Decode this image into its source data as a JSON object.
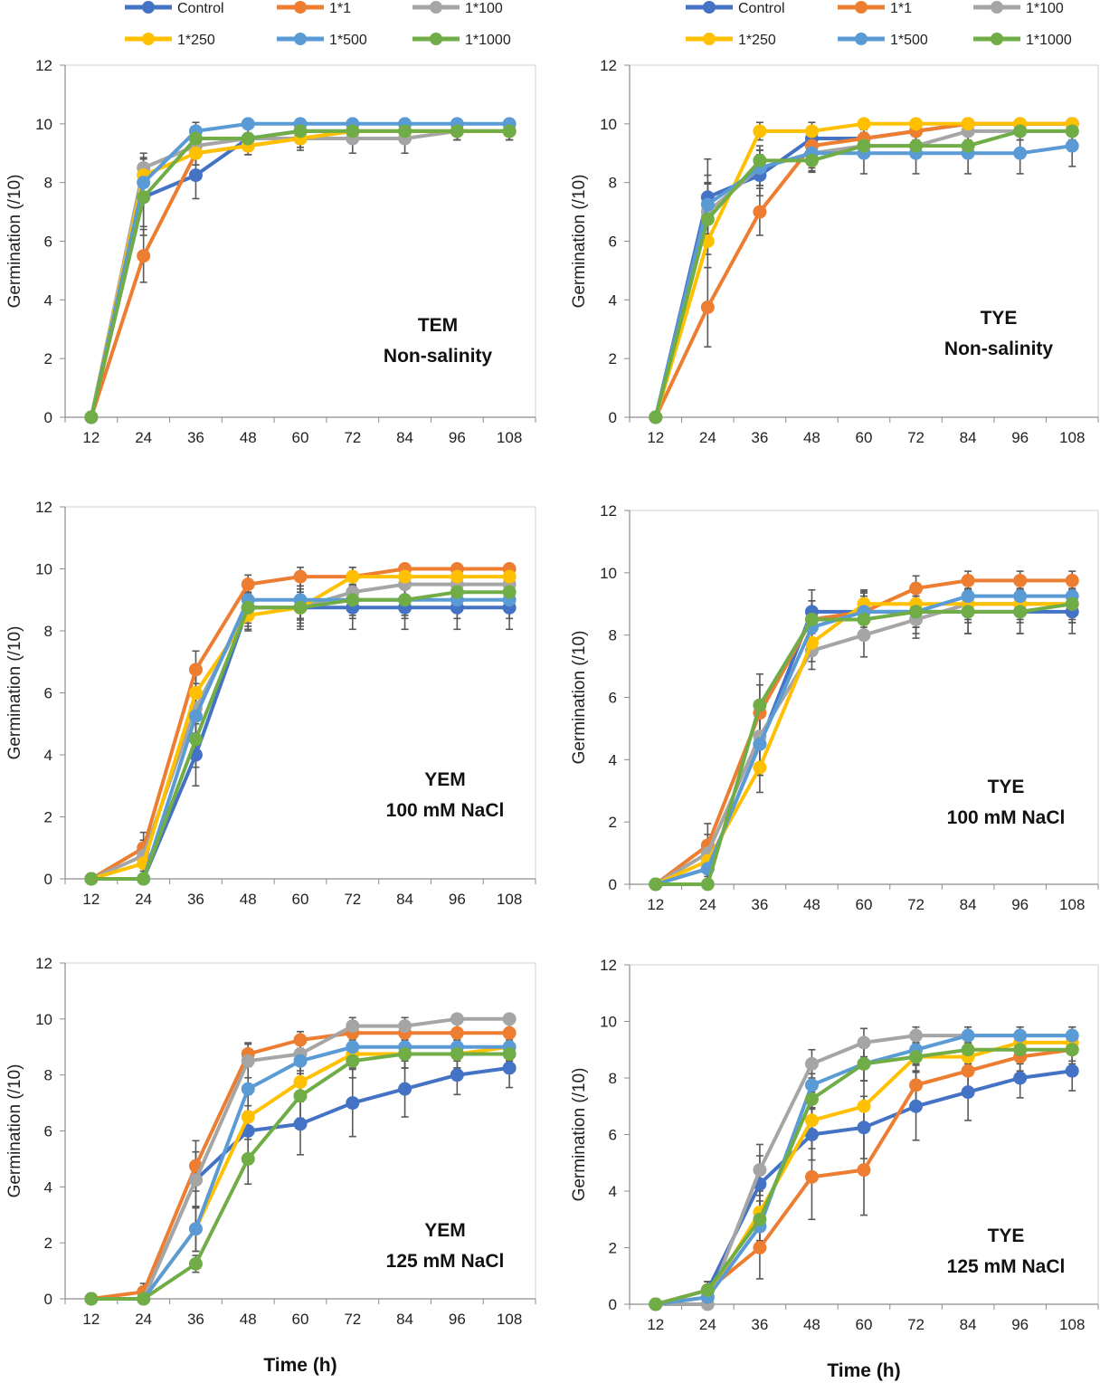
{
  "legend": {
    "entries": [
      {
        "name": "Control",
        "color": "#4472C4"
      },
      {
        "name": "1*1",
        "color": "#ED7D31"
      },
      {
        "name": "1*100",
        "color": "#A5A5A5"
      },
      {
        "name": "1*250",
        "color": "#FFC000"
      },
      {
        "name": "1*500",
        "color": "#5B9BD5"
      },
      {
        "name": "1*1000",
        "color": "#70AD47"
      }
    ]
  },
  "chart_data": [
    {
      "type": "line",
      "annotation": [
        "TEM",
        "Non-salinity"
      ],
      "ylabel": "Germination (/10)",
      "xlabel": "",
      "ylim": [
        0,
        12
      ],
      "yticks": [
        0,
        2,
        4,
        6,
        8,
        10,
        12
      ],
      "x": [
        12,
        24,
        36,
        48,
        60,
        72,
        84,
        96,
        108
      ],
      "series": [
        {
          "name": "Control",
          "values": [
            0,
            7.5,
            8.25,
            9.5,
            9.75,
            9.75,
            9.75,
            9.75,
            9.75
          ],
          "err": [
            0,
            1.3,
            0.8,
            0.4,
            0.3,
            0.3,
            0.3,
            0.3,
            0.3
          ]
        },
        {
          "name": "1*1",
          "values": [
            0,
            5.5,
            9.0,
            9.25,
            9.5,
            9.75,
            9.75,
            9.75,
            9.75
          ],
          "err": [
            0,
            0.9,
            0.4,
            0.3,
            0.3,
            0.3,
            0.3,
            0.3,
            0.3
          ]
        },
        {
          "name": "1*100",
          "values": [
            0,
            8.5,
            9.25,
            9.5,
            9.5,
            9.5,
            9.5,
            9.75,
            9.75
          ],
          "err": [
            0,
            0.5,
            0.4,
            0.4,
            0.4,
            0.5,
            0.5,
            0.3,
            0.3
          ]
        },
        {
          "name": "1*250",
          "values": [
            0,
            8.25,
            9.0,
            9.25,
            9.5,
            9.75,
            9.75,
            9.75,
            9.75
          ],
          "err": [
            0,
            0.6,
            0.4,
            0.3,
            0.3,
            0.3,
            0.3,
            0.3,
            0.3
          ]
        },
        {
          "name": "1*500",
          "values": [
            0,
            8.0,
            9.75,
            10,
            10,
            10,
            10,
            10,
            10
          ],
          "err": [
            0,
            0.6,
            0.3,
            0,
            0,
            0,
            0,
            0,
            0
          ]
        },
        {
          "name": "1*1000",
          "values": [
            0,
            7.5,
            9.5,
            9.5,
            9.75,
            9.75,
            9.75,
            9.75,
            9.75
          ],
          "err": [
            0,
            1.0,
            0.4,
            0.4,
            0.3,
            0.3,
            0.3,
            0.3,
            0.3
          ]
        }
      ]
    },
    {
      "type": "line",
      "annotation": [
        "TYE",
        "Non-salinity"
      ],
      "ylabel": "Germination (/10)",
      "xlabel": "",
      "ylim": [
        0,
        12
      ],
      "yticks": [
        0,
        2,
        4,
        6,
        8,
        10,
        12
      ],
      "x": [
        12,
        24,
        36,
        48,
        60,
        72,
        84,
        96,
        108
      ],
      "series": [
        {
          "name": "Control",
          "values": [
            0,
            7.5,
            8.25,
            9.5,
            9.5,
            9.75,
            10,
            10,
            10
          ],
          "err": [
            0,
            1.3,
            0.7,
            0.4,
            0.3,
            0.3,
            0,
            0,
            0
          ]
        },
        {
          "name": "1*1",
          "values": [
            0,
            3.75,
            7.0,
            9.25,
            9.5,
            9.75,
            10,
            10,
            10
          ],
          "err": [
            0,
            1.35,
            0.8,
            0.4,
            0.4,
            0.3,
            0,
            0,
            0
          ]
        },
        {
          "name": "1*100",
          "values": [
            0,
            7.0,
            8.5,
            9.0,
            9.25,
            9.25,
            9.75,
            9.75,
            9.75
          ],
          "err": [
            0,
            1.0,
            0.6,
            0.5,
            0.4,
            0.4,
            0.3,
            0.3,
            0.3
          ]
        },
        {
          "name": "1*250",
          "values": [
            0,
            6.0,
            9.75,
            9.75,
            10,
            10,
            10,
            10,
            10
          ],
          "err": [
            0,
            0.9,
            0.3,
            0.3,
            0,
            0,
            0,
            0,
            0
          ]
        },
        {
          "name": "1*500",
          "values": [
            0,
            7.25,
            8.5,
            9.0,
            9.0,
            9.0,
            9.0,
            9.0,
            9.25
          ],
          "err": [
            0,
            1.0,
            0.6,
            0.6,
            0.7,
            0.7,
            0.7,
            0.7,
            0.7
          ]
        },
        {
          "name": "1*1000",
          "values": [
            0,
            6.75,
            8.75,
            8.75,
            9.25,
            9.25,
            9.25,
            9.75,
            9.75
          ],
          "err": [
            0,
            1.2,
            0.5,
            0.4,
            0.4,
            0.4,
            0.4,
            0.3,
            0.3
          ]
        }
      ]
    },
    {
      "type": "line",
      "annotation": [
        "YEM",
        "100 mM NaCl"
      ],
      "ylabel": "Germination (/10)",
      "xlabel": "",
      "ylim": [
        0,
        12
      ],
      "yticks": [
        0,
        2,
        4,
        6,
        8,
        10,
        12
      ],
      "x": [
        12,
        24,
        36,
        48,
        60,
        72,
        84,
        96,
        108
      ],
      "series": [
        {
          "name": "Control",
          "values": [
            0,
            0,
            4.0,
            8.75,
            8.75,
            8.75,
            8.75,
            8.75,
            8.75
          ],
          "err": [
            0,
            0,
            1.0,
            0.7,
            0.7,
            0.7,
            0.7,
            0.7,
            0.7
          ]
        },
        {
          "name": "1*1",
          "values": [
            0,
            1.0,
            6.75,
            9.5,
            9.75,
            9.75,
            10,
            10,
            10
          ],
          "err": [
            0,
            0.5,
            0.6,
            0.3,
            0.3,
            0.3,
            0,
            0,
            0
          ]
        },
        {
          "name": "1*100",
          "values": [
            0,
            0.75,
            5.5,
            8.75,
            8.75,
            9.25,
            9.5,
            9.5,
            9.5
          ],
          "err": [
            0,
            0.5,
            0.8,
            0.5,
            0.5,
            0.4,
            0.4,
            0.4,
            0.4
          ]
        },
        {
          "name": "1*250",
          "values": [
            0,
            0.5,
            6.0,
            8.5,
            8.75,
            9.75,
            9.75,
            9.75,
            9.75
          ],
          "err": [
            0,
            0.5,
            0.8,
            0.5,
            0.4,
            0.3,
            0.3,
            0.3,
            0.3
          ]
        },
        {
          "name": "1*500",
          "values": [
            0,
            0,
            5.25,
            9.0,
            9.0,
            9.0,
            9.0,
            9.0,
            9.0
          ],
          "err": [
            0,
            0,
            0.9,
            0.5,
            0.6,
            0.6,
            0.6,
            0.6,
            0.6
          ]
        },
        {
          "name": "1*1000",
          "values": [
            0,
            0,
            4.5,
            8.75,
            8.75,
            9.0,
            9.0,
            9.25,
            9.25
          ],
          "err": [
            0,
            0,
            0.9,
            0.6,
            0.6,
            0.5,
            0.5,
            0.4,
            0.4
          ]
        }
      ]
    },
    {
      "type": "line",
      "annotation": [
        "TYE",
        "100 mM NaCl"
      ],
      "ylabel": "Germination (/10)",
      "xlabel": "",
      "ylim": [
        0,
        12
      ],
      "yticks": [
        0,
        2,
        4,
        6,
        8,
        10,
        12
      ],
      "x": [
        12,
        24,
        36,
        48,
        60,
        72,
        84,
        96,
        108
      ],
      "series": [
        {
          "name": "Control",
          "values": [
            0,
            0.5,
            4.5,
            8.75,
            8.75,
            8.75,
            8.75,
            8.75,
            8.75
          ],
          "err": [
            0,
            0.5,
            1.0,
            0.7,
            0.7,
            0.7,
            0.7,
            0.7,
            0.7
          ]
        },
        {
          "name": "1*1",
          "values": [
            0,
            1.25,
            5.5,
            8.5,
            8.75,
            9.5,
            9.75,
            9.75,
            9.75
          ],
          "err": [
            0,
            0.7,
            0.9,
            0.6,
            0.6,
            0.4,
            0.3,
            0.3,
            0.3
          ]
        },
        {
          "name": "1*100",
          "values": [
            0,
            1.0,
            4.75,
            7.5,
            8.0,
            8.5,
            9.0,
            9.0,
            9.0
          ],
          "err": [
            0,
            0.6,
            0.9,
            0.6,
            0.7,
            0.6,
            0.6,
            0.6,
            0.6
          ]
        },
        {
          "name": "1*250",
          "values": [
            0,
            0.75,
            3.75,
            7.75,
            9.0,
            9.0,
            9.0,
            9.0,
            9.0
          ],
          "err": [
            0,
            0.5,
            0.8,
            0.6,
            0.4,
            0.5,
            0.5,
            0.5,
            0.5
          ]
        },
        {
          "name": "1*500",
          "values": [
            0,
            0.5,
            4.5,
            8.25,
            8.75,
            8.75,
            9.25,
            9.25,
            9.25
          ],
          "err": [
            0,
            0.5,
            1.0,
            0.6,
            0.5,
            0.5,
            0.4,
            0.4,
            0.4
          ]
        },
        {
          "name": "1*1000",
          "values": [
            0,
            0,
            5.75,
            8.5,
            8.5,
            8.75,
            8.75,
            8.75,
            9.0
          ],
          "err": [
            0,
            0,
            1.0,
            0.6,
            0.5,
            0.5,
            0.7,
            0.7,
            0.6
          ]
        }
      ]
    },
    {
      "type": "line",
      "annotation": [
        "YEM",
        "125 mM NaCl"
      ],
      "ylabel": "Germination (/10)",
      "xlabel": "Time (h)",
      "ylim": [
        0,
        12
      ],
      "yticks": [
        0,
        2,
        4,
        6,
        8,
        10,
        12
      ],
      "x": [
        12,
        24,
        36,
        48,
        60,
        72,
        84,
        96,
        108
      ],
      "series": [
        {
          "name": "Control",
          "values": [
            0,
            0,
            4.25,
            6.0,
            6.25,
            7.0,
            7.5,
            8.0,
            8.25
          ],
          "err": [
            0,
            0,
            1.0,
            0.9,
            1.1,
            1.2,
            1.0,
            0.7,
            0.7
          ]
        },
        {
          "name": "1*1",
          "values": [
            0,
            0.25,
            4.75,
            8.75,
            9.25,
            9.5,
            9.5,
            9.5,
            9.5
          ],
          "err": [
            0,
            0.3,
            0.9,
            0.4,
            0.3,
            0.4,
            0.4,
            0.4,
            0.4
          ]
        },
        {
          "name": "1*100",
          "values": [
            0,
            0,
            4.25,
            8.5,
            8.75,
            9.75,
            9.75,
            10,
            10
          ],
          "err": [
            0,
            0,
            1.0,
            0.6,
            0.6,
            0.3,
            0.3,
            0,
            0
          ]
        },
        {
          "name": "1*250",
          "values": [
            0,
            0,
            2.5,
            6.5,
            7.75,
            8.75,
            8.75,
            8.75,
            9.0
          ],
          "err": [
            0,
            0,
            0.8,
            0.8,
            0.7,
            0.5,
            0.5,
            0.5,
            0.5
          ]
        },
        {
          "name": "1*500",
          "values": [
            0,
            0,
            2.5,
            7.5,
            8.5,
            9.0,
            9.0,
            9.0,
            9.0
          ],
          "err": [
            0,
            0,
            0.8,
            0.8,
            0.6,
            0.5,
            0.5,
            0.5,
            0.5
          ]
        },
        {
          "name": "1*1000",
          "values": [
            0,
            0,
            1.25,
            5.0,
            7.25,
            8.5,
            8.75,
            8.75,
            8.75
          ],
          "err": [
            0,
            0,
            0.3,
            0.9,
            0.8,
            0.6,
            0.5,
            0.5,
            0.5
          ]
        }
      ]
    },
    {
      "type": "line",
      "annotation": [
        "TYE",
        "125 mM NaCl"
      ],
      "ylabel": "Germination (/10)",
      "xlabel": "Time (h)",
      "ylim": [
        0,
        12
      ],
      "yticks": [
        0,
        2,
        4,
        6,
        8,
        10,
        12
      ],
      "x": [
        12,
        24,
        36,
        48,
        60,
        72,
        84,
        96,
        108
      ],
      "series": [
        {
          "name": "Control",
          "values": [
            0,
            0.5,
            4.25,
            6.0,
            6.25,
            7.0,
            7.5,
            8.0,
            8.25
          ],
          "err": [
            0,
            0.3,
            1.0,
            0.9,
            1.1,
            1.2,
            1.0,
            0.7,
            0.7
          ]
        },
        {
          "name": "1*1",
          "values": [
            0,
            0.5,
            2.0,
            4.5,
            4.75,
            7.75,
            8.25,
            8.75,
            9.0
          ],
          "err": [
            0,
            0.3,
            1.1,
            1.5,
            1.6,
            0.7,
            0.6,
            0.5,
            0.4
          ]
        },
        {
          "name": "1*100",
          "values": [
            0,
            0,
            4.75,
            8.5,
            9.25,
            9.5,
            9.5,
            9.5,
            9.5
          ],
          "err": [
            0,
            0,
            0.9,
            0.5,
            0.5,
            0.3,
            0.3,
            0.3,
            0.3
          ]
        },
        {
          "name": "1*250",
          "values": [
            0,
            0.25,
            3.25,
            6.5,
            7.0,
            8.75,
            8.75,
            9.25,
            9.25
          ],
          "err": [
            0,
            0.3,
            1.0,
            1.0,
            0.9,
            0.5,
            0.5,
            0.4,
            0.4
          ]
        },
        {
          "name": "1*500",
          "values": [
            0,
            0.25,
            2.75,
            7.75,
            8.5,
            9.0,
            9.5,
            9.5,
            9.5
          ],
          "err": [
            0,
            0.3,
            0.9,
            0.8,
            0.6,
            0.5,
            0.3,
            0.3,
            0.3
          ]
        },
        {
          "name": "1*1000",
          "values": [
            0,
            0.5,
            3.0,
            7.25,
            8.5,
            8.75,
            9.0,
            9.0,
            9.0
          ],
          "err": [
            0,
            0.3,
            1.0,
            0.9,
            0.6,
            0.5,
            0.5,
            0.5,
            0.5
          ]
        }
      ]
    }
  ]
}
